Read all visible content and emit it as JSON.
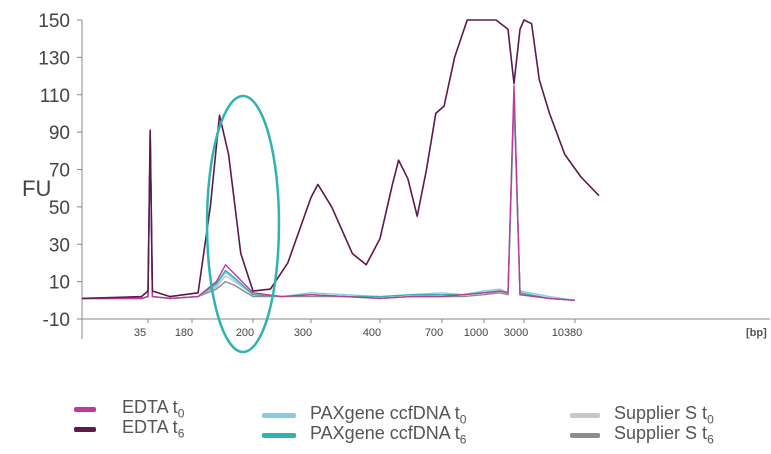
{
  "chart_data": {
    "type": "line",
    "ylabel": "FU",
    "xunit_label": "[bp]",
    "y_ticks": [
      150,
      130,
      110,
      90,
      70,
      50,
      30,
      10,
      -10
    ],
    "ylim": [
      -10,
      150
    ],
    "x_tick_labels": [
      "35",
      "180",
      "200",
      "300",
      "400",
      "700",
      "1000",
      "3000",
      "10380"
    ],
    "x_positions_note": "x axis is ordinal ladder positions; values below indexed by tick order",
    "grid": false,
    "legend_position": "bottom",
    "series": [
      {
        "name": "EDTA t0",
        "color": "#c0399a",
        "points": [
          [
            0,
            1
          ],
          [
            0.9,
            1
          ],
          [
            1.0,
            2
          ],
          [
            1.05,
            90
          ],
          [
            1.1,
            2
          ],
          [
            1.5,
            1
          ],
          [
            2.1,
            2
          ],
          [
            2.4,
            10
          ],
          [
            2.55,
            19
          ],
          [
            2.7,
            14
          ],
          [
            3.0,
            4
          ],
          [
            3.5,
            2
          ],
          [
            4.0,
            3
          ],
          [
            4.5,
            2
          ],
          [
            5.0,
            1
          ],
          [
            5.5,
            2
          ],
          [
            6.0,
            2
          ],
          [
            6.5,
            3
          ],
          [
            7.0,
            4
          ],
          [
            7.4,
            5
          ],
          [
            7.6,
            4
          ],
          [
            7.75,
            115
          ],
          [
            7.9,
            3
          ],
          [
            8.5,
            1
          ],
          [
            9.0,
            0
          ]
        ]
      },
      {
        "name": "EDTA t6",
        "color": "#5c1a4a",
        "points": [
          [
            0,
            1
          ],
          [
            0.9,
            2
          ],
          [
            1.0,
            5
          ],
          [
            1.05,
            91
          ],
          [
            1.1,
            5
          ],
          [
            1.5,
            2
          ],
          [
            2.1,
            4
          ],
          [
            2.3,
            50
          ],
          [
            2.45,
            99
          ],
          [
            2.6,
            78
          ],
          [
            2.8,
            25
          ],
          [
            3.0,
            5
          ],
          [
            3.3,
            6
          ],
          [
            3.6,
            20
          ],
          [
            4.0,
            55
          ],
          [
            4.1,
            62
          ],
          [
            4.3,
            50
          ],
          [
            4.6,
            25
          ],
          [
            4.8,
            19
          ],
          [
            5.0,
            33
          ],
          [
            5.2,
            62
          ],
          [
            5.3,
            75
          ],
          [
            5.45,
            65
          ],
          [
            5.6,
            45
          ],
          [
            5.75,
            70
          ],
          [
            5.9,
            100
          ],
          [
            6.05,
            104
          ],
          [
            6.3,
            130
          ],
          [
            6.6,
            152
          ],
          [
            7.3,
            152
          ],
          [
            7.6,
            145
          ],
          [
            7.75,
            116
          ],
          [
            7.9,
            145
          ],
          [
            8.0,
            152
          ],
          [
            8.15,
            148
          ],
          [
            8.3,
            118
          ],
          [
            8.5,
            100
          ],
          [
            8.8,
            78
          ],
          [
            9.1,
            66
          ],
          [
            9.4,
            56
          ]
        ]
      },
      {
        "name": "PAXgene ccfDNA t0",
        "color": "#86cde3",
        "points": [
          [
            0,
            1
          ],
          [
            0.9,
            1
          ],
          [
            1.0,
            2
          ],
          [
            1.05,
            88
          ],
          [
            1.1,
            2
          ],
          [
            1.5,
            1
          ],
          [
            2.1,
            2
          ],
          [
            2.4,
            8
          ],
          [
            2.55,
            15
          ],
          [
            2.7,
            11
          ],
          [
            3.0,
            3
          ],
          [
            3.5,
            2
          ],
          [
            4.0,
            4
          ],
          [
            4.5,
            3
          ],
          [
            5.0,
            2
          ],
          [
            5.5,
            3
          ],
          [
            6.0,
            4
          ],
          [
            6.5,
            3
          ],
          [
            7.0,
            5
          ],
          [
            7.4,
            6
          ],
          [
            7.6,
            4
          ],
          [
            7.75,
            105
          ],
          [
            7.9,
            5
          ],
          [
            8.5,
            2
          ],
          [
            9.0,
            0
          ]
        ]
      },
      {
        "name": "PAXgene ccfDNA t6",
        "color": "#30b3b0",
        "points": [
          [
            0,
            1
          ],
          [
            0.9,
            1
          ],
          [
            1.0,
            2
          ],
          [
            1.05,
            87
          ],
          [
            1.1,
            2
          ],
          [
            1.5,
            1
          ],
          [
            2.1,
            2
          ],
          [
            2.4,
            9
          ],
          [
            2.55,
            16
          ],
          [
            2.7,
            12
          ],
          [
            3.0,
            3
          ],
          [
            3.5,
            2
          ],
          [
            4.0,
            3
          ],
          [
            4.5,
            2
          ],
          [
            5.0,
            2
          ],
          [
            5.5,
            3
          ],
          [
            6.0,
            3
          ],
          [
            6.5,
            3
          ],
          [
            7.0,
            4
          ],
          [
            7.4,
            5
          ],
          [
            7.6,
            4
          ],
          [
            7.75,
            110
          ],
          [
            7.9,
            4
          ],
          [
            8.5,
            1
          ],
          [
            9.0,
            0
          ]
        ]
      },
      {
        "name": "Supplier S t0",
        "color": "#c8c8c8",
        "points": [
          [
            0,
            1
          ],
          [
            0.9,
            1
          ],
          [
            1.0,
            2
          ],
          [
            1.05,
            89
          ],
          [
            1.1,
            2
          ],
          [
            1.5,
            1
          ],
          [
            2.1,
            2
          ],
          [
            2.4,
            7
          ],
          [
            2.55,
            13
          ],
          [
            2.7,
            10
          ],
          [
            3.0,
            3
          ],
          [
            3.5,
            2
          ],
          [
            4.0,
            3
          ],
          [
            4.5,
            2
          ],
          [
            5.0,
            1
          ],
          [
            5.5,
            2
          ],
          [
            6.0,
            3
          ],
          [
            6.5,
            3
          ],
          [
            7.0,
            4
          ],
          [
            7.4,
            4
          ],
          [
            7.6,
            3
          ],
          [
            7.75,
            108
          ],
          [
            7.9,
            3
          ],
          [
            8.5,
            1
          ],
          [
            9.0,
            0
          ]
        ]
      },
      {
        "name": "Supplier S t6",
        "color": "#8c8c8c",
        "points": [
          [
            0,
            1
          ],
          [
            0.9,
            1
          ],
          [
            1.0,
            2
          ],
          [
            1.05,
            90
          ],
          [
            1.1,
            2
          ],
          [
            1.5,
            1
          ],
          [
            2.1,
            2
          ],
          [
            2.4,
            6
          ],
          [
            2.55,
            10
          ],
          [
            2.7,
            8
          ],
          [
            3.0,
            2
          ],
          [
            3.5,
            2
          ],
          [
            4.0,
            2
          ],
          [
            4.5,
            2
          ],
          [
            5.0,
            1
          ],
          [
            5.5,
            2
          ],
          [
            6.0,
            2
          ],
          [
            6.5,
            2
          ],
          [
            7.0,
            3
          ],
          [
            7.4,
            4
          ],
          [
            7.6,
            3
          ],
          [
            7.75,
            112
          ],
          [
            7.9,
            3
          ],
          [
            8.5,
            1
          ],
          [
            9.0,
            0
          ]
        ]
      }
    ],
    "highlight": {
      "shape": "ellipse",
      "color": "#30b3b0",
      "around_tick": "200"
    }
  },
  "legend": {
    "items": [
      {
        "base": "EDTA t",
        "sub": "0",
        "color": "#c0399a"
      },
      {
        "base": "EDTA t",
        "sub": "6",
        "color": "#5c1a4a"
      },
      {
        "base": "PAXgene ccfDNA t",
        "sub": "0",
        "color": "#86cde3"
      },
      {
        "base": "PAXgene ccfDNA t",
        "sub": "6",
        "color": "#30b3b0"
      },
      {
        "base": "Supplier S t",
        "sub": "0",
        "color": "#c8c8c8"
      },
      {
        "base": "Supplier S t",
        "sub": "6",
        "color": "#8c8c8c"
      }
    ]
  }
}
